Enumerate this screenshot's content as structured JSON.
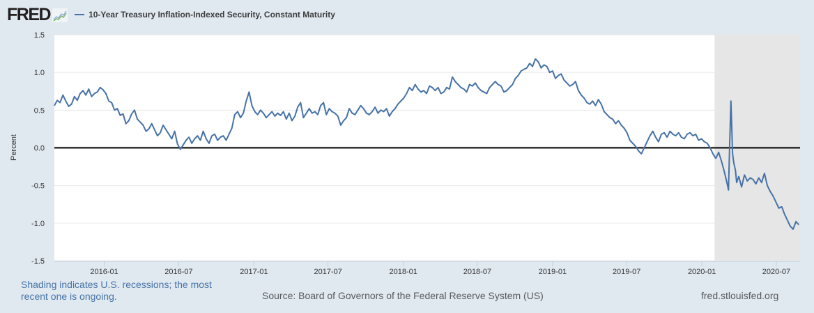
{
  "header": {
    "logo_text": "FRED",
    "logo_icon": "line-chart-icon",
    "series_label": "10-Year Treasury Inflation-Indexed Security, Constant Maturity",
    "series_color": "#4572a7"
  },
  "footer": {
    "recession_note": "Shading indicates U.S. recessions; the most recent one is ongoing.",
    "source": "Source: Board of Governors of the Federal Reserve System (US)",
    "url": "fred.stlouisfed.org"
  },
  "chart_data": {
    "type": "line",
    "title": "10-Year Treasury Inflation-Indexed Security, Constant Maturity",
    "xlabel": "",
    "ylabel": "Percent",
    "ylim": [
      -1.5,
      1.5
    ],
    "xlim": [
      "2015-09-01",
      "2020-08-28"
    ],
    "yticks": [
      "1.5",
      "1.0",
      "0.5",
      "0.0",
      "-0.5",
      "-1.0",
      "-1.5"
    ],
    "ytick_values": [
      1.5,
      1.0,
      0.5,
      0.0,
      -0.5,
      -1.0,
      -1.5
    ],
    "xticks": [
      "2016-01",
      "2016-07",
      "2017-01",
      "2017-07",
      "2018-01",
      "2018-07",
      "2019-01",
      "2019-07",
      "2020-01",
      "2020-07"
    ],
    "grid": true,
    "zero_line": true,
    "legend": "top-left",
    "line_color": "#4572a7",
    "recession_shading": [
      {
        "start": "2020-02-01",
        "end": "2020-08-28"
      }
    ],
    "series": [
      {
        "name": "10-Year Treasury Inflation-Indexed Security, Constant Maturity",
        "x": [
          "2015-09-01",
          "2015-09-08",
          "2015-09-15",
          "2015-09-22",
          "2015-09-29",
          "2015-10-06",
          "2015-10-13",
          "2015-10-20",
          "2015-10-27",
          "2015-11-03",
          "2015-11-10",
          "2015-11-17",
          "2015-11-24",
          "2015-12-01",
          "2015-12-08",
          "2015-12-15",
          "2015-12-22",
          "2015-12-29",
          "2016-01-05",
          "2016-01-12",
          "2016-01-19",
          "2016-01-26",
          "2016-02-02",
          "2016-02-09",
          "2016-02-16",
          "2016-02-23",
          "2016-03-01",
          "2016-03-08",
          "2016-03-15",
          "2016-03-22",
          "2016-03-29",
          "2016-04-05",
          "2016-04-12",
          "2016-04-19",
          "2016-04-26",
          "2016-05-03",
          "2016-05-10",
          "2016-05-17",
          "2016-05-24",
          "2016-05-31",
          "2016-06-07",
          "2016-06-14",
          "2016-06-21",
          "2016-06-28",
          "2016-07-05",
          "2016-07-12",
          "2016-07-19",
          "2016-07-26",
          "2016-08-02",
          "2016-08-09",
          "2016-08-16",
          "2016-08-23",
          "2016-08-30",
          "2016-09-06",
          "2016-09-13",
          "2016-09-20",
          "2016-09-27",
          "2016-10-04",
          "2016-10-11",
          "2016-10-18",
          "2016-10-25",
          "2016-11-01",
          "2016-11-08",
          "2016-11-15",
          "2016-11-22",
          "2016-11-29",
          "2016-12-06",
          "2016-12-13",
          "2016-12-20",
          "2016-12-27",
          "2017-01-03",
          "2017-01-10",
          "2017-01-17",
          "2017-01-24",
          "2017-01-31",
          "2017-02-07",
          "2017-02-14",
          "2017-02-21",
          "2017-02-28",
          "2017-03-07",
          "2017-03-14",
          "2017-03-21",
          "2017-03-28",
          "2017-04-04",
          "2017-04-11",
          "2017-04-18",
          "2017-04-25",
          "2017-05-02",
          "2017-05-09",
          "2017-05-16",
          "2017-05-23",
          "2017-05-30",
          "2017-06-06",
          "2017-06-13",
          "2017-06-20",
          "2017-06-27",
          "2017-07-04",
          "2017-07-11",
          "2017-07-18",
          "2017-07-25",
          "2017-08-01",
          "2017-08-08",
          "2017-08-15",
          "2017-08-22",
          "2017-08-29",
          "2017-09-05",
          "2017-09-12",
          "2017-09-19",
          "2017-09-26",
          "2017-10-03",
          "2017-10-10",
          "2017-10-17",
          "2017-10-24",
          "2017-10-31",
          "2017-11-07",
          "2017-11-14",
          "2017-11-21",
          "2017-11-28",
          "2017-12-05",
          "2017-12-12",
          "2017-12-19",
          "2017-12-26",
          "2018-01-02",
          "2018-01-09",
          "2018-01-16",
          "2018-01-23",
          "2018-01-30",
          "2018-02-06",
          "2018-02-13",
          "2018-02-20",
          "2018-02-27",
          "2018-03-06",
          "2018-03-13",
          "2018-03-20",
          "2018-03-27",
          "2018-04-03",
          "2018-04-10",
          "2018-04-17",
          "2018-04-24",
          "2018-05-01",
          "2018-05-08",
          "2018-05-15",
          "2018-05-22",
          "2018-05-29",
          "2018-06-05",
          "2018-06-12",
          "2018-06-19",
          "2018-06-26",
          "2018-07-03",
          "2018-07-10",
          "2018-07-17",
          "2018-07-24",
          "2018-07-31",
          "2018-08-07",
          "2018-08-14",
          "2018-08-21",
          "2018-08-28",
          "2018-09-04",
          "2018-09-11",
          "2018-09-18",
          "2018-09-25",
          "2018-10-02",
          "2018-10-09",
          "2018-10-16",
          "2018-10-23",
          "2018-10-30",
          "2018-11-06",
          "2018-11-13",
          "2018-11-20",
          "2018-11-27",
          "2018-12-04",
          "2018-12-11",
          "2018-12-18",
          "2018-12-25",
          "2019-01-01",
          "2019-01-08",
          "2019-01-15",
          "2019-01-22",
          "2019-01-29",
          "2019-02-05",
          "2019-02-12",
          "2019-02-19",
          "2019-02-26",
          "2019-03-05",
          "2019-03-12",
          "2019-03-19",
          "2019-03-26",
          "2019-04-02",
          "2019-04-09",
          "2019-04-16",
          "2019-04-23",
          "2019-04-30",
          "2019-05-07",
          "2019-05-14",
          "2019-05-21",
          "2019-05-28",
          "2019-06-04",
          "2019-06-11",
          "2019-06-18",
          "2019-06-25",
          "2019-07-02",
          "2019-07-09",
          "2019-07-16",
          "2019-07-23",
          "2019-07-30",
          "2019-08-06",
          "2019-08-13",
          "2019-08-20",
          "2019-08-27",
          "2019-09-03",
          "2019-09-10",
          "2019-09-17",
          "2019-09-24",
          "2019-10-01",
          "2019-10-08",
          "2019-10-15",
          "2019-10-22",
          "2019-10-29",
          "2019-11-05",
          "2019-11-12",
          "2019-11-19",
          "2019-11-26",
          "2019-12-03",
          "2019-12-10",
          "2019-12-17",
          "2019-12-24",
          "2019-12-31",
          "2020-01-07",
          "2020-01-14",
          "2020-01-21",
          "2020-01-28",
          "2020-02-04",
          "2020-02-11",
          "2020-02-18",
          "2020-02-25",
          "2020-03-03",
          "2020-03-06",
          "2020-03-09",
          "2020-03-12",
          "2020-03-16",
          "2020-03-19",
          "2020-03-23",
          "2020-03-26",
          "2020-03-31",
          "2020-04-07",
          "2020-04-14",
          "2020-04-21",
          "2020-04-28",
          "2020-05-05",
          "2020-05-12",
          "2020-05-19",
          "2020-05-26",
          "2020-06-02",
          "2020-06-09",
          "2020-06-16",
          "2020-06-23",
          "2020-06-30",
          "2020-07-07",
          "2020-07-14",
          "2020-07-21",
          "2020-07-28",
          "2020-08-04",
          "2020-08-11",
          "2020-08-18",
          "2020-08-25"
        ],
        "values": [
          0.56,
          0.63,
          0.6,
          0.7,
          0.62,
          0.55,
          0.58,
          0.68,
          0.63,
          0.72,
          0.76,
          0.7,
          0.78,
          0.68,
          0.72,
          0.74,
          0.8,
          0.77,
          0.72,
          0.62,
          0.6,
          0.5,
          0.52,
          0.43,
          0.45,
          0.32,
          0.36,
          0.45,
          0.5,
          0.38,
          0.34,
          0.3,
          0.22,
          0.25,
          0.32,
          0.24,
          0.16,
          0.2,
          0.3,
          0.24,
          0.18,
          0.12,
          0.22,
          0.05,
          -0.02,
          0.04,
          0.1,
          0.14,
          0.06,
          0.12,
          0.16,
          0.1,
          0.22,
          0.12,
          0.06,
          0.16,
          0.18,
          0.1,
          0.14,
          0.16,
          0.1,
          0.18,
          0.26,
          0.44,
          0.48,
          0.4,
          0.46,
          0.62,
          0.74,
          0.56,
          0.48,
          0.44,
          0.5,
          0.46,
          0.4,
          0.44,
          0.48,
          0.42,
          0.46,
          0.43,
          0.48,
          0.38,
          0.46,
          0.36,
          0.42,
          0.54,
          0.6,
          0.4,
          0.46,
          0.52,
          0.46,
          0.48,
          0.44,
          0.56,
          0.6,
          0.44,
          0.52,
          0.48,
          0.46,
          0.42,
          0.3,
          0.36,
          0.4,
          0.52,
          0.46,
          0.44,
          0.5,
          0.56,
          0.52,
          0.46,
          0.44,
          0.48,
          0.54,
          0.46,
          0.5,
          0.48,
          0.52,
          0.42,
          0.48,
          0.52,
          0.58,
          0.62,
          0.66,
          0.72,
          0.8,
          0.76,
          0.84,
          0.78,
          0.74,
          0.76,
          0.72,
          0.82,
          0.8,
          0.76,
          0.8,
          0.72,
          0.74,
          0.8,
          0.78,
          0.94,
          0.88,
          0.84,
          0.8,
          0.78,
          0.74,
          0.84,
          0.82,
          0.86,
          0.8,
          0.76,
          0.74,
          0.72,
          0.8,
          0.84,
          0.88,
          0.84,
          0.82,
          0.74,
          0.76,
          0.8,
          0.84,
          0.92,
          0.96,
          1.02,
          1.04,
          1.06,
          1.12,
          1.08,
          1.18,
          1.14,
          1.06,
          1.1,
          1.08,
          1.0,
          1.02,
          0.92,
          0.96,
          0.98,
          0.9,
          0.86,
          0.82,
          0.84,
          0.88,
          0.76,
          0.7,
          0.66,
          0.6,
          0.58,
          0.62,
          0.56,
          0.64,
          0.58,
          0.48,
          0.44,
          0.4,
          0.38,
          0.32,
          0.36,
          0.3,
          0.26,
          0.2,
          0.1,
          0.06,
          0.02,
          -0.04,
          -0.08,
          0.0,
          0.08,
          0.16,
          0.22,
          0.14,
          0.08,
          0.18,
          0.2,
          0.14,
          0.22,
          0.18,
          0.16,
          0.2,
          0.14,
          0.12,
          0.18,
          0.2,
          0.16,
          0.18,
          0.1,
          0.12,
          0.08,
          0.06,
          0.0,
          -0.08,
          -0.14,
          -0.06,
          -0.18,
          -0.32,
          -0.48,
          -0.56,
          0.04,
          0.62,
          -0.08,
          -0.2,
          -0.3,
          -0.46,
          -0.38,
          -0.52,
          -0.36,
          -0.44,
          -0.4,
          -0.42,
          -0.48,
          -0.4,
          -0.46,
          -0.34,
          -0.5,
          -0.58,
          -0.64,
          -0.72,
          -0.8,
          -0.78,
          -0.88,
          -0.96,
          -1.04,
          -1.08,
          -0.98,
          -1.02
        ]
      }
    ]
  }
}
